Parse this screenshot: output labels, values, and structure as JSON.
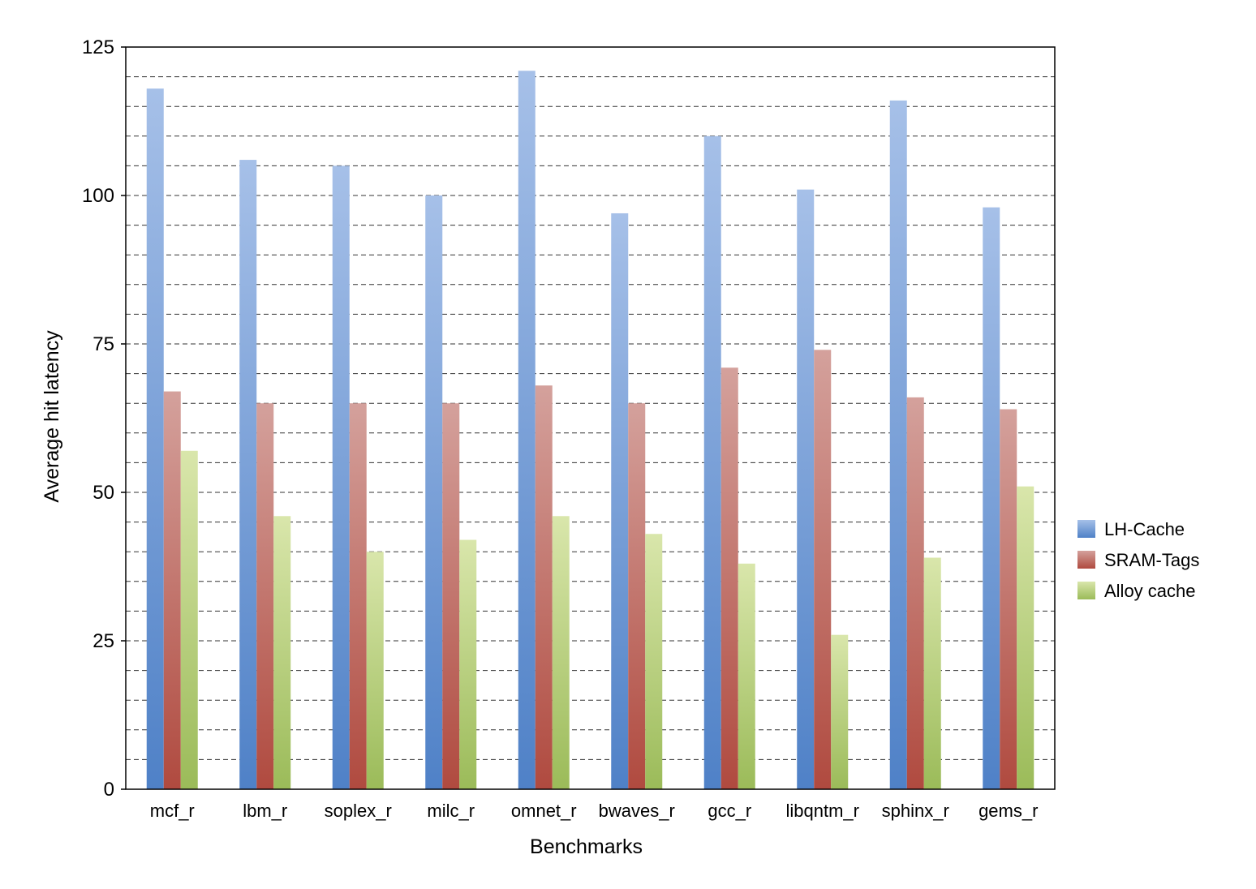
{
  "chart_data": {
    "type": "bar",
    "title": "",
    "xlabel": "Benchmarks",
    "ylabel": "Average hit latency",
    "ylim": [
      0,
      125
    ],
    "yticks": [
      0,
      25,
      50,
      75,
      100,
      125
    ],
    "grid": true,
    "legend_position": "right",
    "categories": [
      "mcf_r",
      "lbm_r",
      "soplex_r",
      "milc_r",
      "omnet_r",
      "bwaves_r",
      "gcc_r",
      "libqntm_r",
      "sphinx_r",
      "gems_r"
    ],
    "series": [
      {
        "name": "LH-Cache",
        "color_top": "#a6c0e8",
        "color_bottom": "#4f81c7",
        "values": [
          118,
          106,
          105,
          100,
          121,
          97,
          110,
          101,
          116,
          98
        ]
      },
      {
        "name": "SRAM-Tags",
        "color_top": "#d4a19c",
        "color_bottom": "#b04a3f",
        "values": [
          67,
          65,
          65,
          65,
          68,
          65,
          71,
          74,
          66,
          64
        ]
      },
      {
        "name": "Alloy cache",
        "color_top": "#d9e6ab",
        "color_bottom": "#9bbb59",
        "values": [
          57,
          46,
          40,
          42,
          46,
          43,
          38,
          26,
          39,
          51
        ]
      }
    ]
  }
}
